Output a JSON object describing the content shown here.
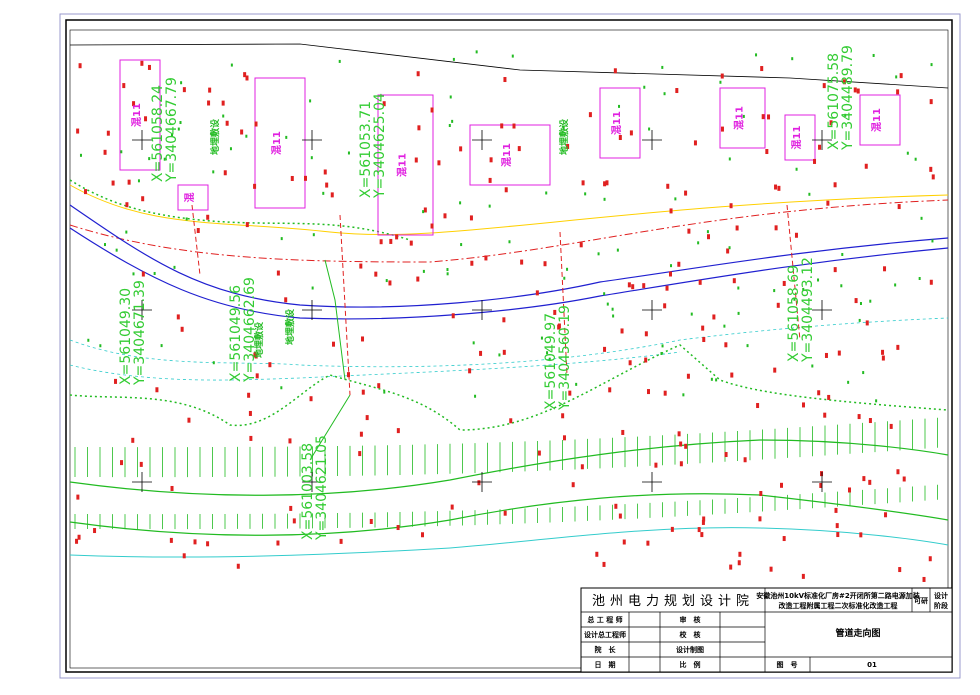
{
  "coordinate_labels": [
    {
      "x": "X=561058.24",
      "y": "Y=3404667.79"
    },
    {
      "x": "X=561053.71",
      "y": "Y=3404625.04"
    },
    {
      "x": "X=561075.58",
      "y": "Y=3404489.79"
    },
    {
      "x": "X=561049.30",
      "y": "Y=3404671.39"
    },
    {
      "x": "X=561049.56",
      "y": "Y=3404662.69"
    },
    {
      "x": "X=561049.97",
      "y": "Y=3404560.19"
    },
    {
      "x": "X=561058.69",
      "y": "Y=3404493.12"
    },
    {
      "x": "X=561003.58",
      "y": "Y=3404621.05"
    }
  ],
  "building_labels": [
    "混11",
    "混11",
    "混11",
    "混11",
    "混11",
    "混11",
    "混11",
    "混11",
    "混"
  ],
  "notes": [
    "地埋敷设",
    "地埋敷设",
    "地埋敷设",
    "地埋敷设"
  ],
  "title_block": {
    "company": "池州电力规划设计院",
    "project": [
      "安徽池州10kV标准化厂房#2开闭所第二路电源加装",
      "改造工程附属工程二次标准化改造工程"
    ],
    "stage": "可研",
    "stage_label": [
      "设计",
      "阶段"
    ],
    "drawing_name": "管道走向图",
    "rows": [
      [
        "总 工 程 师",
        "审　核"
      ],
      [
        "设计总工程师",
        "校　核"
      ],
      [
        "院　长",
        "设计制图"
      ],
      [
        "日　期",
        "比　例"
      ]
    ],
    "drawing_no_label": "图　号",
    "drawing_no": "01"
  }
}
